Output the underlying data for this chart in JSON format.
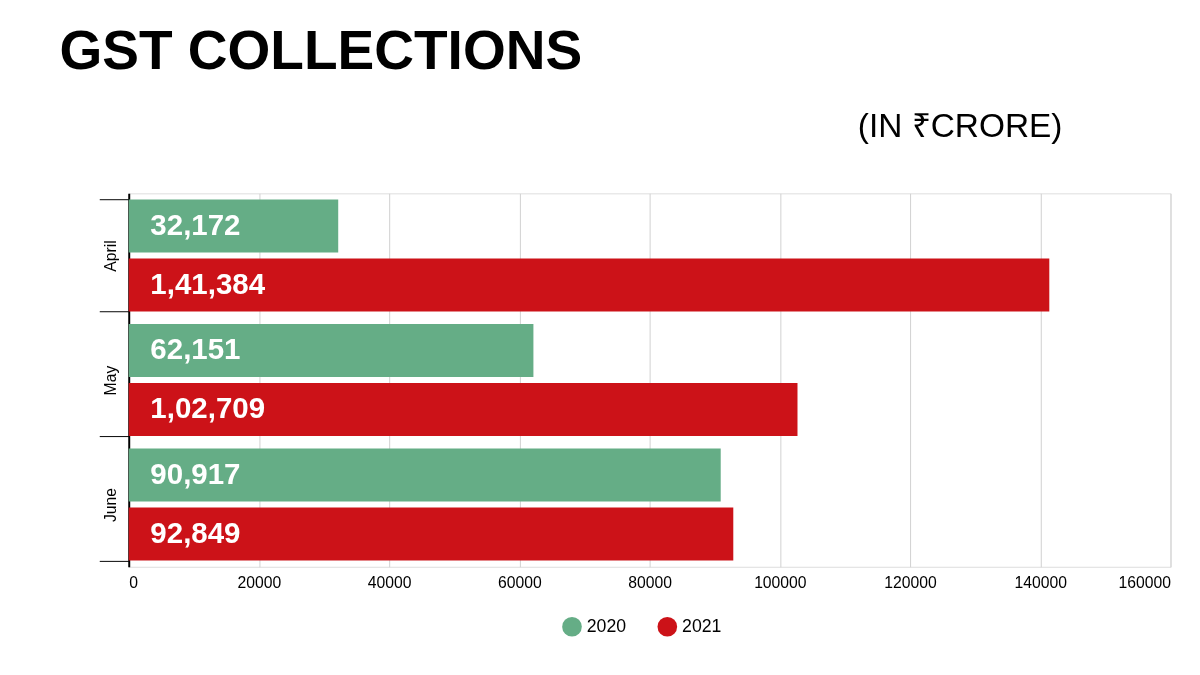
{
  "chart_data": {
    "type": "bar",
    "orientation": "horizontal",
    "title": "GST COLLECTIONS",
    "subtitle": "(IN ₹CRORE)",
    "categories": [
      "April",
      "May",
      "June"
    ],
    "series": [
      {
        "name": "2020",
        "color": "#65ad86",
        "values": [
          32172,
          62151,
          90917
        ],
        "value_labels": [
          "32,172",
          "62,151",
          "90,917"
        ]
      },
      {
        "name": "2021",
        "color": "#cc1218",
        "values": [
          141384,
          102709,
          92849
        ],
        "value_labels": [
          "1,41,384",
          "1,02,709",
          "92,849"
        ]
      }
    ],
    "xlim": [
      0,
      160000
    ],
    "xticks": [
      0,
      20000,
      40000,
      60000,
      80000,
      100000,
      120000,
      140000,
      160000
    ],
    "grid": "x",
    "legend": "bottom"
  }
}
